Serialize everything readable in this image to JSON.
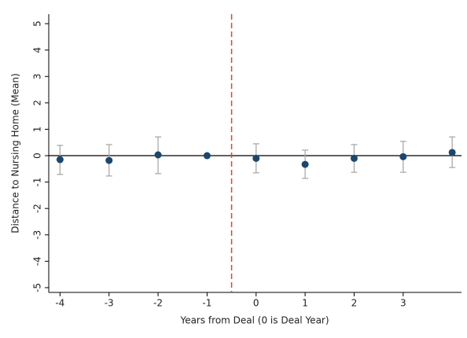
{
  "chart_data": {
    "type": "errorbar",
    "xlabel": "Years from Deal (0 is Deal Year)",
    "ylabel": "Distance to Nursing Home (Mean)",
    "x": [
      -4,
      -3,
      -2,
      -1,
      0,
      1,
      2,
      3,
      4
    ],
    "values": [
      -0.15,
      -0.18,
      0.03,
      0,
      -0.1,
      -0.33,
      -0.1,
      -0.04,
      0.12
    ],
    "lower": [
      -0.71,
      -0.77,
      -0.68,
      null,
      -0.65,
      -0.86,
      -0.63,
      -0.63,
      -0.45
    ],
    "upper": [
      0.39,
      0.42,
      0.71,
      null,
      0.45,
      0.21,
      0.42,
      0.54,
      0.71
    ],
    "color": "#1a476f",
    "errorbar_color": "#aaaaaa",
    "xlim": [
      -4.23,
      4.19
    ],
    "xticks": [
      -4,
      -3,
      -2,
      -1,
      0,
      1,
      2,
      3
    ],
    "ylim": [
      -5.18,
      5.36
    ],
    "yticks": [
      -5,
      -4,
      -3,
      -2,
      -1,
      0,
      1,
      2,
      3,
      4,
      5
    ],
    "hline": 0,
    "vline": -0.5,
    "vline_color": "#e04040"
  }
}
